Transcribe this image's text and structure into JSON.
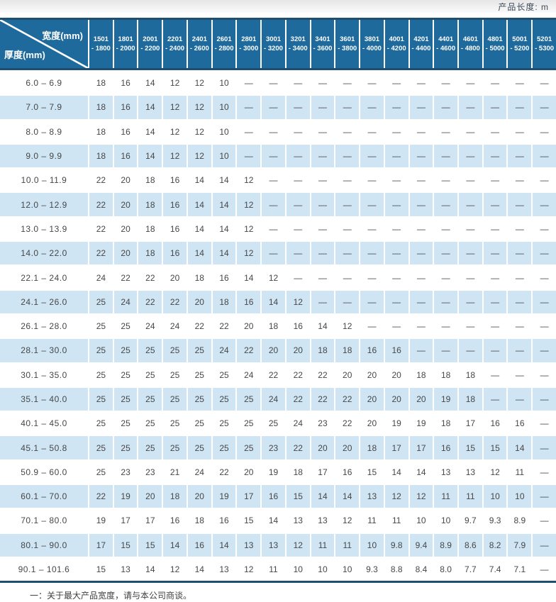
{
  "top_bar": {
    "unit_label": "产品长度: m"
  },
  "table": {
    "corner": {
      "width_label": "宽度(mm)",
      "thickness_label": "厚度(mm)"
    },
    "columns": [
      "1501 - 1800",
      "1801 - 2000",
      "2001 - 2200",
      "2201 - 2400",
      "2401 - 2600",
      "2601 - 2800",
      "2801 - 3000",
      "3001 - 3200",
      "3201 - 3400",
      "3401 - 3600",
      "3601 - 3800",
      "3801 - 4000",
      "4001 - 4200",
      "4201 - 4400",
      "4401 - 4600",
      "4601 - 4800",
      "4801 - 5000",
      "5001 - 5200",
      "5201 - 5300"
    ],
    "rows": [
      {
        "label": "6.0 –  6.9",
        "values": [
          "18",
          "16",
          "14",
          "12",
          "12",
          "10",
          "—",
          "—",
          "—",
          "—",
          "—",
          "—",
          "—",
          "—",
          "—",
          "—",
          "—",
          "—",
          "—"
        ]
      },
      {
        "label": "7.0 –  7.9",
        "values": [
          "18",
          "16",
          "14",
          "12",
          "12",
          "10",
          "—",
          "—",
          "—",
          "—",
          "—",
          "—",
          "—",
          "—",
          "—",
          "—",
          "—",
          "—",
          "—"
        ]
      },
      {
        "label": "8.0 –  8.9",
        "values": [
          "18",
          "16",
          "14",
          "12",
          "12",
          "10",
          "—",
          "—",
          "—",
          "—",
          "—",
          "—",
          "—",
          "—",
          "—",
          "—",
          "—",
          "—",
          "—"
        ]
      },
      {
        "label": "9.0 –  9.9",
        "values": [
          "18",
          "16",
          "14",
          "12",
          "12",
          "10",
          "—",
          "—",
          "—",
          "—",
          "—",
          "—",
          "—",
          "—",
          "—",
          "—",
          "—",
          "—",
          "—"
        ]
      },
      {
        "label": "10.0 – 11.9",
        "values": [
          "22",
          "20",
          "18",
          "16",
          "14",
          "14",
          "12",
          "—",
          "—",
          "—",
          "—",
          "—",
          "—",
          "—",
          "—",
          "—",
          "—",
          "—",
          "—"
        ]
      },
      {
        "label": "12.0 – 12.9",
        "values": [
          "22",
          "20",
          "18",
          "16",
          "14",
          "14",
          "12",
          "—",
          "—",
          "—",
          "—",
          "—",
          "—",
          "—",
          "—",
          "—",
          "—",
          "—",
          "—"
        ]
      },
      {
        "label": "13.0 – 13.9",
        "values": [
          "22",
          "20",
          "18",
          "16",
          "14",
          "14",
          "12",
          "—",
          "—",
          "—",
          "—",
          "—",
          "—",
          "—",
          "—",
          "—",
          "—",
          "—",
          "—"
        ]
      },
      {
        "label": "14.0 – 22.0",
        "values": [
          "22",
          "20",
          "18",
          "16",
          "14",
          "14",
          "12",
          "—",
          "—",
          "—",
          "—",
          "—",
          "—",
          "—",
          "—",
          "—",
          "—",
          "—",
          "—"
        ]
      },
      {
        "label": "22.1 – 24.0",
        "values": [
          "24",
          "22",
          "22",
          "20",
          "18",
          "16",
          "14",
          "12",
          "—",
          "—",
          "—",
          "—",
          "—",
          "—",
          "—",
          "—",
          "—",
          "—",
          "—"
        ]
      },
      {
        "label": "24.1 – 26.0",
        "values": [
          "25",
          "24",
          "22",
          "22",
          "20",
          "18",
          "16",
          "14",
          "12",
          "—",
          "—",
          "—",
          "—",
          "—",
          "—",
          "—",
          "—",
          "—",
          "—"
        ]
      },
      {
        "label": "26.1 – 28.0",
        "values": [
          "25",
          "25",
          "24",
          "24",
          "22",
          "22",
          "20",
          "18",
          "16",
          "14",
          "12",
          "—",
          "—",
          "—",
          "—",
          "—",
          "—",
          "—",
          "—"
        ]
      },
      {
        "label": "28.1 – 30.0",
        "values": [
          "25",
          "25",
          "25",
          "25",
          "25",
          "24",
          "22",
          "20",
          "20",
          "18",
          "18",
          "16",
          "16",
          "—",
          "—",
          "—",
          "—",
          "—",
          "—"
        ]
      },
      {
        "label": "30.1 – 35.0",
        "values": [
          "25",
          "25",
          "25",
          "25",
          "25",
          "25",
          "24",
          "22",
          "22",
          "22",
          "20",
          "20",
          "20",
          "18",
          "18",
          "18",
          "—",
          "—",
          "—"
        ]
      },
      {
        "label": "35.1 – 40.0",
        "values": [
          "25",
          "25",
          "25",
          "25",
          "25",
          "25",
          "25",
          "24",
          "22",
          "22",
          "22",
          "20",
          "20",
          "20",
          "19",
          "18",
          "—",
          "—",
          "—"
        ]
      },
      {
        "label": "40.1 – 45.0",
        "values": [
          "25",
          "25",
          "25",
          "25",
          "25",
          "25",
          "25",
          "25",
          "24",
          "23",
          "22",
          "20",
          "19",
          "19",
          "18",
          "17",
          "16",
          "16",
          "—"
        ]
      },
      {
        "label": "45.1 – 50.8",
        "values": [
          "25",
          "25",
          "25",
          "25",
          "25",
          "25",
          "25",
          "23",
          "22",
          "20",
          "20",
          "18",
          "17",
          "17",
          "16",
          "15",
          "15",
          "14",
          "—"
        ]
      },
      {
        "label": "50.9 – 60.0",
        "values": [
          "25",
          "23",
          "23",
          "21",
          "24",
          "22",
          "20",
          "19",
          "18",
          "17",
          "16",
          "15",
          "14",
          "14",
          "13",
          "13",
          "12",
          "11",
          "—"
        ]
      },
      {
        "label": "60.1 – 70.0",
        "values": [
          "22",
          "19",
          "20",
          "18",
          "20",
          "19",
          "17",
          "16",
          "15",
          "14",
          "14",
          "13",
          "12",
          "12",
          "11",
          "11",
          "10",
          "10",
          "—"
        ]
      },
      {
        "label": "70.1 – 80.0",
        "values": [
          "19",
          "17",
          "17",
          "16",
          "18",
          "16",
          "15",
          "14",
          "13",
          "13",
          "12",
          "11",
          "11",
          "10",
          "10",
          "9.7",
          "9.3",
          "8.9",
          "—"
        ]
      },
      {
        "label": "80.1 – 90.0",
        "values": [
          "17",
          "15",
          "15",
          "14",
          "16",
          "14",
          "13",
          "13",
          "12",
          "11",
          "11",
          "10",
          "9.8",
          "9.4",
          "8.9",
          "8.6",
          "8.2",
          "7.9",
          "—"
        ]
      },
      {
        "label": "90.1 – 101.6",
        "values": [
          "15",
          "13",
          "14",
          "12",
          "14",
          "13",
          "12",
          "11",
          "10",
          "10",
          "10",
          "9.3",
          "8.8",
          "8.4",
          "8.0",
          "7.7",
          "7.4",
          "7.1",
          "—"
        ]
      }
    ]
  },
  "footnote": "一：关于最大产品宽度，请与本公司商谈。",
  "colors": {
    "header_blue": "#1e6a9c",
    "row_stripe_blue": "#cfe5f4",
    "navy_line": "#1c4f72",
    "top_bar_gray": "#e6e6e6"
  }
}
